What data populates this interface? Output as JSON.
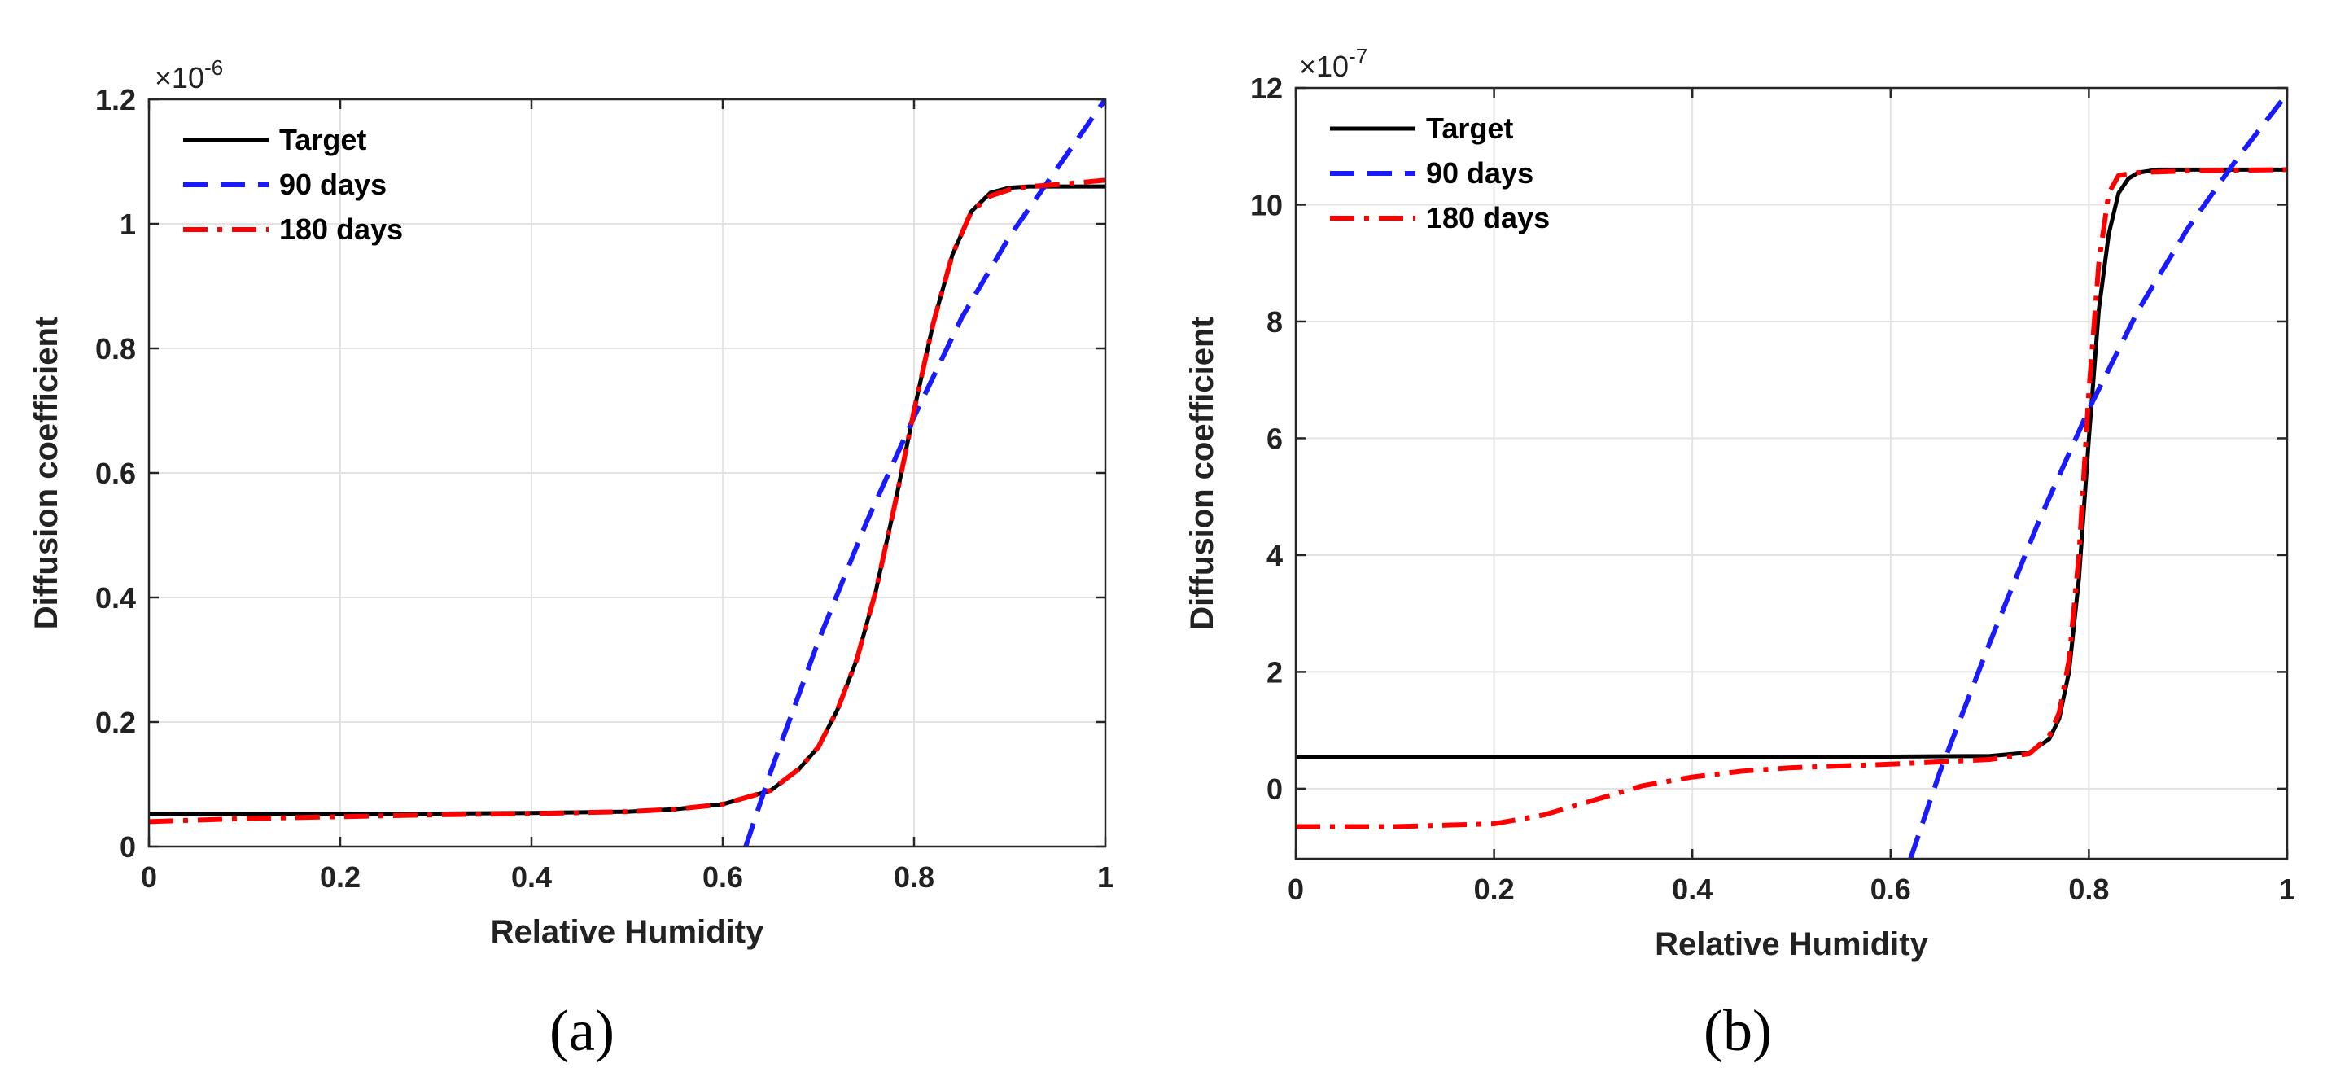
{
  "figure": {
    "captions": [
      "(a)",
      "(b)"
    ]
  },
  "chart_data": [
    {
      "type": "line",
      "panel": "(a)",
      "title": "",
      "xlabel": "Relative Humidity",
      "ylabel": "Diffusion coefficient",
      "exponent_base": "×10",
      "exponent_power": "-6",
      "xlim": [
        0,
        1
      ],
      "ylim": [
        0,
        1.2
      ],
      "xticks": [
        0,
        0.2,
        0.4,
        0.6,
        0.8,
        1
      ],
      "xtick_labels": [
        "0",
        "0.2",
        "0.4",
        "0.6",
        "0.8",
        "1"
      ],
      "yticks": [
        0,
        0.2,
        0.4,
        0.6,
        0.8,
        1,
        1.2
      ],
      "ytick_labels": [
        "0",
        "0.2",
        "0.4",
        "0.6",
        "0.8",
        "1",
        "1.2"
      ],
      "grid": true,
      "legend_position": "top-left",
      "series": [
        {
          "name": "Target",
          "color": "#000000",
          "dash": "solid",
          "x": [
            0,
            0.1,
            0.2,
            0.3,
            0.4,
            0.5,
            0.55,
            0.6,
            0.65,
            0.68,
            0.7,
            0.72,
            0.74,
            0.76,
            0.78,
            0.8,
            0.82,
            0.84,
            0.86,
            0.88,
            0.9,
            0.92,
            0.95,
            1.0
          ],
          "y": [
            0.052,
            0.052,
            0.052,
            0.053,
            0.054,
            0.056,
            0.06,
            0.068,
            0.09,
            0.125,
            0.16,
            0.22,
            0.3,
            0.41,
            0.55,
            0.7,
            0.84,
            0.95,
            1.02,
            1.05,
            1.058,
            1.06,
            1.06,
            1.06
          ]
        },
        {
          "name": "90 days",
          "color": "#1a1aff",
          "dash": "dashed",
          "x": [
            0.624,
            0.65,
            0.7,
            0.75,
            0.8,
            0.85,
            0.9,
            0.95,
            1.0
          ],
          "y": [
            0.0,
            0.12,
            0.33,
            0.52,
            0.69,
            0.85,
            0.98,
            1.09,
            1.2
          ]
        },
        {
          "name": "180 days",
          "color": "#ff0000",
          "dash": "dashdot",
          "x": [
            0,
            0.1,
            0.2,
            0.3,
            0.4,
            0.5,
            0.55,
            0.6,
            0.65,
            0.68,
            0.7,
            0.72,
            0.74,
            0.76,
            0.78,
            0.8,
            0.82,
            0.84,
            0.86,
            0.88,
            0.9,
            0.92,
            0.95,
            1.0
          ],
          "y": [
            0.04,
            0.045,
            0.048,
            0.051,
            0.053,
            0.056,
            0.06,
            0.068,
            0.09,
            0.125,
            0.16,
            0.22,
            0.3,
            0.41,
            0.55,
            0.7,
            0.84,
            0.95,
            1.02,
            1.045,
            1.055,
            1.06,
            1.063,
            1.07
          ]
        }
      ]
    },
    {
      "type": "line",
      "panel": "(b)",
      "title": "",
      "xlabel": "Relative Humidity",
      "ylabel": "Diffusion coefficient",
      "exponent_base": "×10",
      "exponent_power": "-7",
      "xlim": [
        0,
        1
      ],
      "ylim": [
        -1.2,
        12
      ],
      "xticks": [
        0,
        0.2,
        0.4,
        0.6,
        0.8,
        1
      ],
      "xtick_labels": [
        "0",
        "0.2",
        "0.4",
        "0.6",
        "0.8",
        "1"
      ],
      "yticks": [
        0,
        2,
        4,
        6,
        8,
        10,
        12
      ],
      "ytick_labels": [
        "0",
        "2",
        "4",
        "6",
        "8",
        "10",
        "12"
      ],
      "grid": true,
      "legend_position": "top-left",
      "series": [
        {
          "name": "Target",
          "color": "#000000",
          "dash": "solid",
          "x": [
            0,
            0.2,
            0.4,
            0.6,
            0.7,
            0.74,
            0.76,
            0.77,
            0.78,
            0.79,
            0.8,
            0.81,
            0.82,
            0.83,
            0.84,
            0.85,
            0.87,
            0.9,
            1.0
          ],
          "y": [
            0.55,
            0.55,
            0.55,
            0.55,
            0.56,
            0.62,
            0.85,
            1.2,
            2.0,
            3.6,
            6.0,
            8.2,
            9.5,
            10.2,
            10.45,
            10.55,
            10.6,
            10.6,
            10.6
          ]
        },
        {
          "name": "90 days",
          "color": "#1a1aff",
          "dash": "dashed",
          "x": [
            0.62,
            0.65,
            0.7,
            0.75,
            0.8,
            0.85,
            0.9,
            0.95,
            1.0
          ],
          "y": [
            -1.2,
            0.3,
            2.5,
            4.6,
            6.5,
            8.2,
            9.6,
            10.8,
            11.9
          ]
        },
        {
          "name": "180 days",
          "color": "#ff0000",
          "dash": "dashdot",
          "x": [
            0,
            0.1,
            0.2,
            0.25,
            0.3,
            0.35,
            0.4,
            0.45,
            0.5,
            0.6,
            0.7,
            0.74,
            0.76,
            0.77,
            0.78,
            0.79,
            0.8,
            0.81,
            0.82,
            0.83,
            0.85,
            0.9,
            1.0
          ],
          "y": [
            -0.65,
            -0.65,
            -0.6,
            -0.45,
            -0.2,
            0.05,
            0.2,
            0.3,
            0.36,
            0.42,
            0.5,
            0.6,
            0.9,
            1.3,
            2.2,
            4.0,
            6.8,
            9.0,
            10.2,
            10.5,
            10.55,
            10.58,
            10.6
          ]
        }
      ]
    }
  ]
}
